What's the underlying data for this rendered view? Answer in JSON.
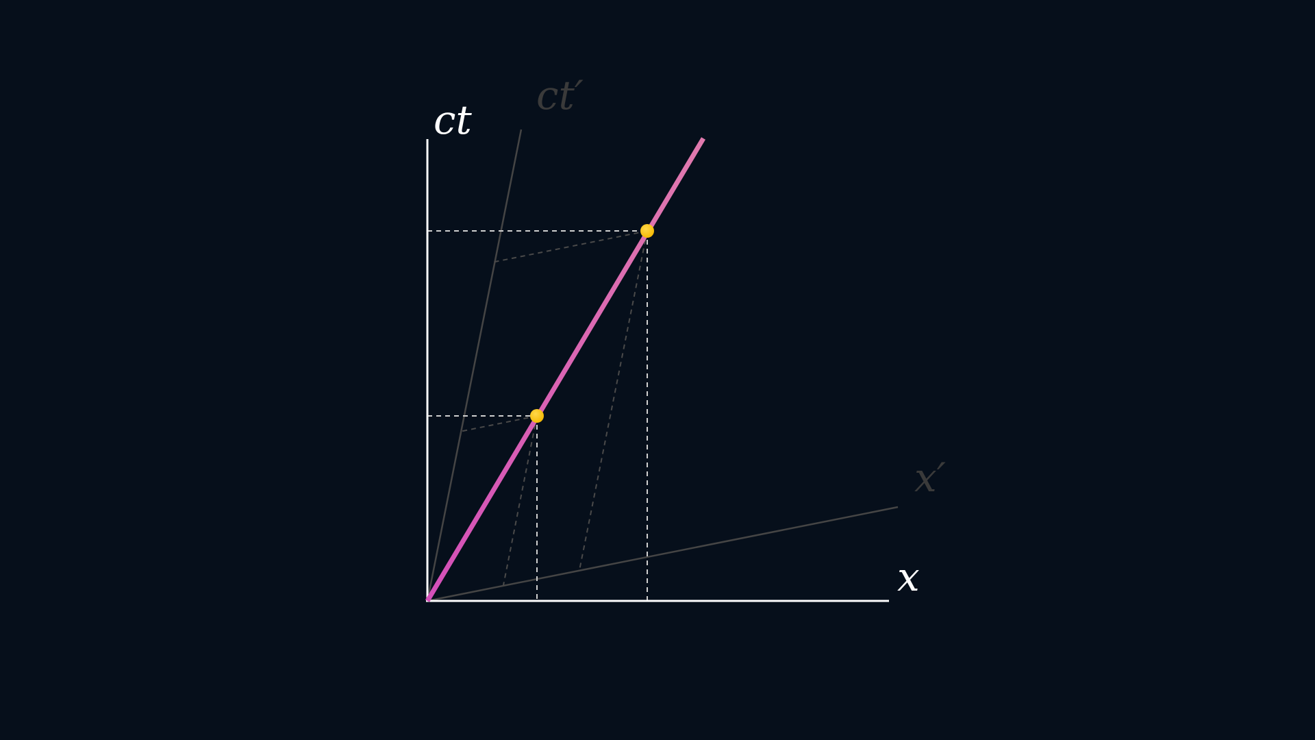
{
  "labels": {
    "ct": "ct",
    "ct_prime": "ct′",
    "x": "x",
    "x_prime": "x′"
  },
  "colors": {
    "background": "#060f1b",
    "axis": "#ffffff",
    "primed_axis": "#454545",
    "primed_label": "#3a3a3a",
    "worldline_start": "#d44fb8",
    "worldline_end": "#e07aae",
    "event_fill": "#f5b800",
    "event_highlight": "#ffd84a",
    "guide_white": "#d0d0d0",
    "guide_gray": "#4a4a4a"
  },
  "frame": {
    "boost_tan": 0.2,
    "worldline_slope_dx_per_dct": 0.6
  },
  "events": [
    {
      "name": "event-1",
      "x": 1,
      "ct": 1.667
    },
    {
      "name": "event-2",
      "x": 2,
      "ct": 3.333
    }
  ]
}
